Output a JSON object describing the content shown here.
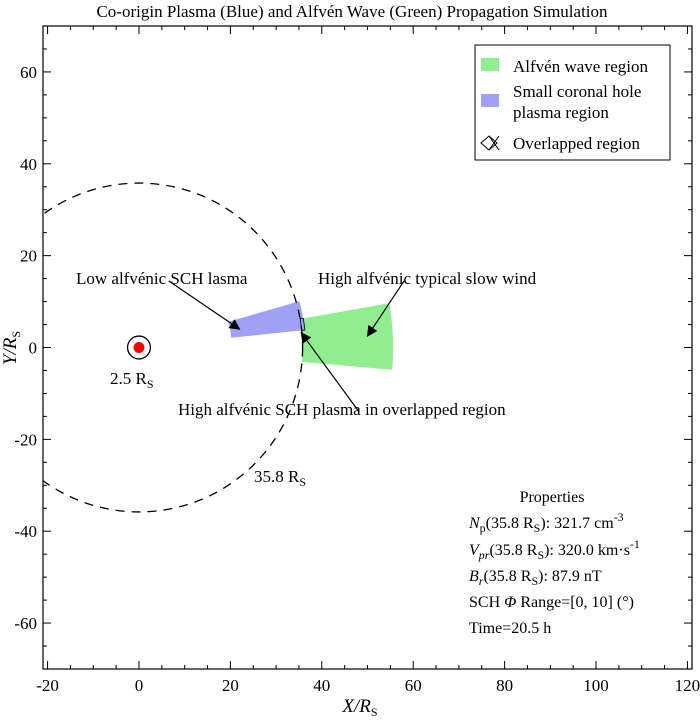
{
  "chart_data": {
    "type": "scatter",
    "title": "Co-origin Plasma (Blue) and Alfvén Wave (Green) Propagation Simulation",
    "xlabel": "X/R",
    "xlabel_sub": "S",
    "ylabel": "Y/R",
    "ylabel_sub": "S",
    "xlim": [
      -21,
      121
    ],
    "ylim": [
      -70,
      70
    ],
    "xticks": [
      -20,
      0,
      20,
      40,
      60,
      80,
      100,
      120
    ],
    "yticks": [
      -60,
      -40,
      -20,
      0,
      20,
      40,
      60
    ],
    "grid": false,
    "legend_placement": "top-right",
    "legend": [
      {
        "label": "Alfvén wave region",
        "color": "#90ee90"
      },
      {
        "label": "Small coronal hole plasma region",
        "lines": [
          "Small coronal hole",
          "plasma region"
        ],
        "color": "#a0a0f4"
      },
      {
        "label": "Overlapped region",
        "color": "#000000"
      }
    ],
    "colors": {
      "alfven": "#90ee90",
      "plasma": "#a0a0f4",
      "sun": "#ff0000"
    },
    "sun": {
      "x": 0,
      "y": 0,
      "radius": 2.5,
      "label": "2.5 R",
      "label_sub": "S"
    },
    "reference_circle": {
      "x": 0,
      "y": 0,
      "radius": 35.8,
      "style": "dashed",
      "label": "35.8 R",
      "label_sub": "S"
    },
    "regions": {
      "alfven_wave": {
        "r_inner": 35.8,
        "r_outer": 55.6,
        "phi_min_deg": -5,
        "phi_max_deg": 10
      },
      "plasma": {
        "r_inner": 20.3,
        "r_outer": 36.5,
        "phi_min_deg": 6,
        "phi_max_deg": 16
      }
    },
    "annotations": [
      {
        "text": "Low alfvénic SCH  lasma",
        "x": 6.5,
        "y": 14.5,
        "arrow_to": [
          22,
          4
        ]
      },
      {
        "text": "High alfvénic typical slow wind",
        "x": 58,
        "y": 14.5,
        "arrow_to": [
          50,
          2.5
        ]
      },
      {
        "text": "High alfvénic SCH plasma in overlapped region",
        "x": 48,
        "y": -13.8,
        "arrow_to": [
          35.5,
          3.2
        ]
      }
    ],
    "properties": {
      "title": "Properties",
      "rows": [
        {
          "pre": "N",
          "pre_sub": "p",
          "mid": "(35.8 R",
          "mid_sub": "S",
          "post": "): 321.7 cm",
          "post_sup": "-3"
        },
        {
          "pre": "V",
          "pre_sub": "pr",
          "mid": "(35.8 R",
          "mid_sub": "S",
          "post": "): 320.0 km·s",
          "post_sup": "-1"
        },
        {
          "pre": "B",
          "pre_sub": "r",
          "mid": "(35.8 R",
          "mid_sub": "S",
          "post": "): 87.9 nT",
          "post_sup": ""
        },
        {
          "pre": "SCH ",
          "pre_sub": "",
          "mid": "Φ",
          "mid_sub": "",
          "post": " Range=[0, 10] (°)",
          "post_sup": ""
        },
        {
          "pre": "Time=20.5 h",
          "pre_sub": "",
          "mid": "",
          "mid_sub": "",
          "post": "",
          "post_sup": ""
        }
      ]
    }
  }
}
